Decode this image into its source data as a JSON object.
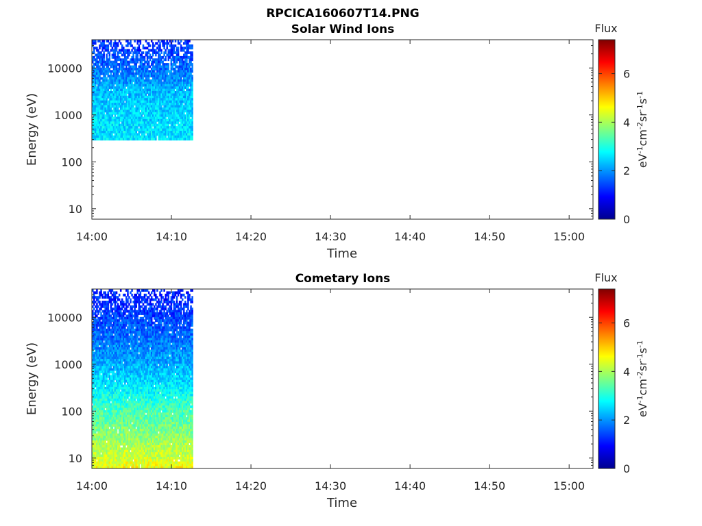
{
  "figure": {
    "title": "RPCICA160607T14.PNG"
  },
  "colors": {
    "frame": "#262626",
    "background": "#ffffff",
    "colormap": [
      "#00008f",
      "#0000ff",
      "#0080ff",
      "#00ffff",
      "#80ff80",
      "#ffff00",
      "#ff8000",
      "#ff0000",
      "#800000"
    ]
  },
  "chart_data": [
    {
      "type": "heatmap",
      "title": "Solar Wind Ions",
      "xlabel": "Time",
      "ylabel": "Energy (eV)",
      "x_ticks": [
        "14:00",
        "14:10",
        "14:20",
        "14:30",
        "14:40",
        "14:50",
        "15:00"
      ],
      "x_range_minutes": [
        0,
        63
      ],
      "y_scale": "log",
      "y_range": [
        6,
        40000
      ],
      "y_ticks": [
        10,
        100,
        1000,
        10000
      ],
      "y_tick_labels": [
        "10",
        "100",
        "1000",
        "10000"
      ],
      "data_time_range_minutes": [
        0,
        12.7
      ],
      "data_energy_range": [
        290,
        40000
      ],
      "flux_profile": [
        {
          "energy": 300,
          "level": 2.6
        },
        {
          "energy": 1000,
          "level": 2.5
        },
        {
          "energy": 3000,
          "level": 2.3
        },
        {
          "energy": 10000,
          "level": 1.7
        },
        {
          "energy": 40000,
          "level": 1.2
        }
      ],
      "colorbar": {
        "title": "Flux",
        "label": "eV-1cm-2sr-1s-1",
        "range": [
          0,
          7.4
        ],
        "ticks": [
          "0",
          "2",
          "4",
          "6"
        ]
      }
    },
    {
      "type": "heatmap",
      "title": "Cometary Ions",
      "xlabel": "Time",
      "ylabel": "Energy (eV)",
      "x_ticks": [
        "14:00",
        "14:10",
        "14:20",
        "14:30",
        "14:40",
        "14:50",
        "15:00"
      ],
      "x_range_minutes": [
        0,
        63
      ],
      "y_scale": "log",
      "y_range": [
        6,
        40000
      ],
      "y_ticks": [
        10,
        100,
        1000,
        10000
      ],
      "y_tick_labels": [
        "10",
        "100",
        "1000",
        "10000"
      ],
      "data_time_range_minutes": [
        0,
        12.7
      ],
      "data_energy_range": [
        6,
        40000
      ],
      "flux_profile": [
        {
          "energy": 6,
          "level": 4.6
        },
        {
          "energy": 10,
          "level": 4.3
        },
        {
          "energy": 30,
          "level": 3.8
        },
        {
          "energy": 100,
          "level": 3.3
        },
        {
          "energy": 300,
          "level": 2.7
        },
        {
          "energy": 1000,
          "level": 2.2
        },
        {
          "energy": 3000,
          "level": 1.8
        },
        {
          "energy": 10000,
          "level": 1.4
        },
        {
          "energy": 40000,
          "level": 1.1
        }
      ],
      "colorbar": {
        "title": "Flux",
        "label": "eV-1cm-2sr-1s-1",
        "range": [
          0,
          7.4
        ],
        "ticks": [
          "0",
          "2",
          "4",
          "6"
        ]
      }
    }
  ]
}
